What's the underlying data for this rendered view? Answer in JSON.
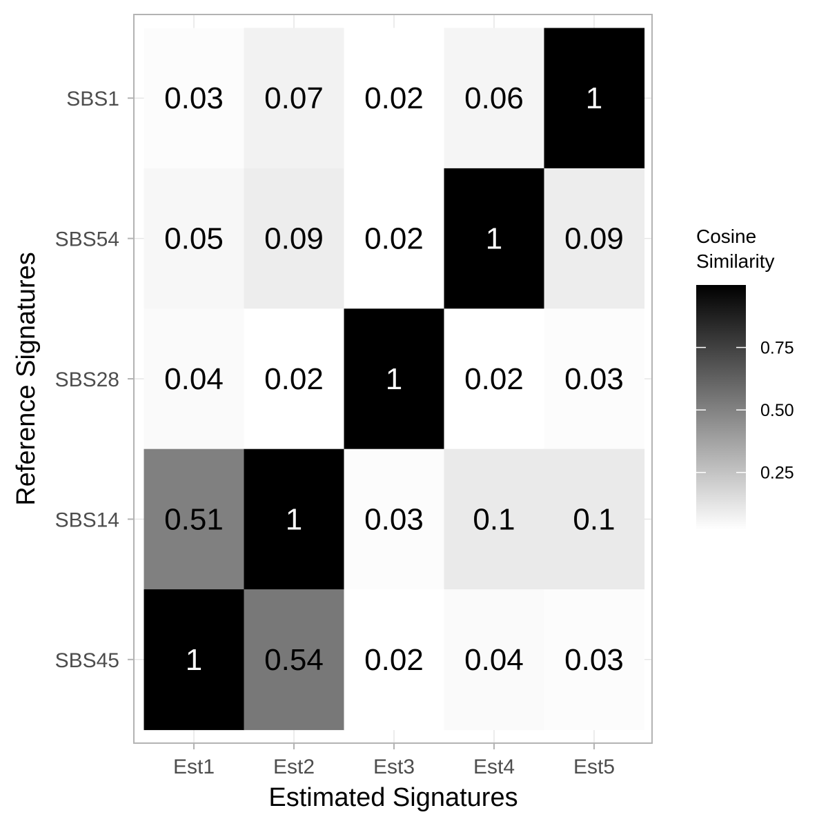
{
  "chart_data": {
    "type": "heatmap",
    "title": "",
    "xlabel": "Estimated Signatures",
    "ylabel": "Reference Signatures",
    "x_categories": [
      "Est1",
      "Est2",
      "Est3",
      "Est4",
      "Est5"
    ],
    "y_categories": [
      "SBS1",
      "SBS54",
      "SBS28",
      "SBS14",
      "SBS45"
    ],
    "values": [
      [
        0.03,
        0.07,
        0.02,
        0.06,
        1
      ],
      [
        0.05,
        0.09,
        0.02,
        1,
        0.09
      ],
      [
        0.04,
        0.02,
        1,
        0.02,
        0.03
      ],
      [
        0.51,
        1,
        0.03,
        0.1,
        0.1
      ],
      [
        1,
        0.54,
        0.02,
        0.04,
        0.03
      ]
    ],
    "legend": {
      "title_lines": [
        "Cosine",
        "Similarity"
      ],
      "ticks": [
        0.25,
        0.5,
        0.75
      ],
      "tick_labels": [
        "0.25",
        "0.50",
        "0.75"
      ],
      "placement": "right",
      "color_low": "#ffffff",
      "color_high": "#000000",
      "range": [
        0.02,
        1
      ]
    },
    "grid": true
  }
}
